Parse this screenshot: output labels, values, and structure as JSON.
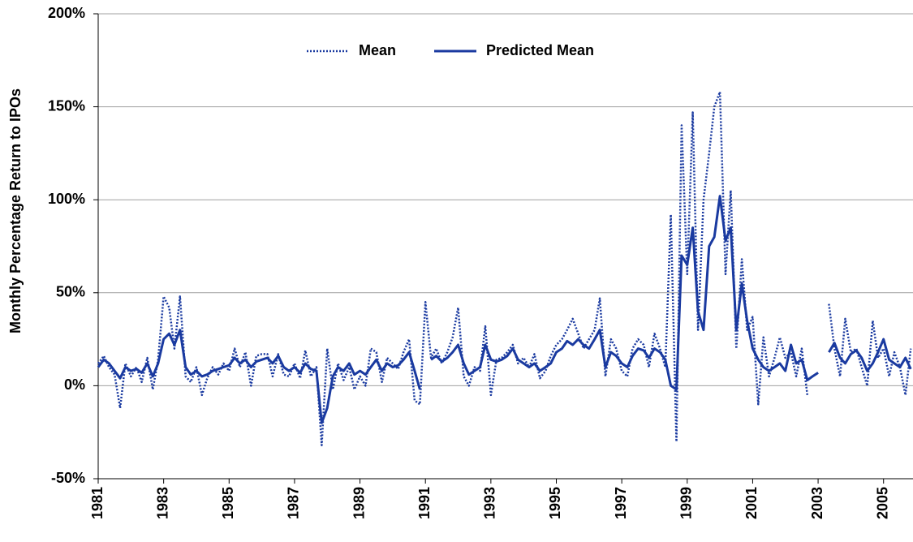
{
  "chart_data": {
    "type": "line",
    "y_label": "Monthly Percentage Return to IPOs",
    "x": [
      1981,
      1981.17,
      1981.33,
      1981.5,
      1981.67,
      1981.83,
      1982,
      1982.17,
      1982.33,
      1982.5,
      1982.67,
      1982.83,
      1983,
      1983.17,
      1983.33,
      1983.5,
      1983.67,
      1983.83,
      1984,
      1984.17,
      1984.33,
      1984.5,
      1984.67,
      1984.83,
      1985,
      1985.17,
      1985.33,
      1985.5,
      1985.67,
      1985.83,
      1986,
      1986.17,
      1986.33,
      1986.5,
      1986.67,
      1986.83,
      1987,
      1987.17,
      1987.33,
      1987.5,
      1987.67,
      1987.83,
      1988,
      1988.17,
      1988.33,
      1988.5,
      1988.67,
      1988.83,
      1989,
      1989.17,
      1989.33,
      1989.5,
      1989.67,
      1989.83,
      1990,
      1990.17,
      1990.33,
      1990.5,
      1990.67,
      1990.83,
      1991,
      1991.17,
      1991.33,
      1991.5,
      1991.67,
      1991.83,
      1992,
      1992.17,
      1992.33,
      1992.5,
      1992.67,
      1992.83,
      1993,
      1993.17,
      1993.33,
      1993.5,
      1993.67,
      1993.83,
      1994,
      1994.17,
      1994.33,
      1994.5,
      1994.67,
      1994.83,
      1995,
      1995.17,
      1995.33,
      1995.5,
      1995.67,
      1995.83,
      1996,
      1996.17,
      1996.33,
      1996.5,
      1996.67,
      1996.83,
      1997,
      1997.17,
      1997.33,
      1997.5,
      1997.67,
      1997.83,
      1998,
      1998.17,
      1998.33,
      1998.5,
      1998.67,
      1998.83,
      1999,
      1999.17,
      1999.33,
      1999.5,
      1999.67,
      1999.83,
      2000,
      2000.17,
      2000.33,
      2000.5,
      2000.67,
      2000.83,
      2001,
      2001.17,
      2001.33,
      2001.5,
      2001.67,
      2001.83,
      2002,
      2002.17,
      2002.33,
      2002.5,
      2002.67,
      2002.83,
      2003,
      2003.17,
      2003.33,
      2003.5,
      2003.67,
      2003.83,
      2004,
      2004.17,
      2004.33,
      2004.5,
      2004.67,
      2004.83,
      2005,
      2005.17,
      2005.33,
      2005.5,
      2005.67,
      2005.83
    ],
    "series": [
      {
        "name": "Mean",
        "color": "#1a3aa0",
        "style": "dotted",
        "values": [
          12,
          16,
          10,
          6,
          -12,
          12,
          5,
          10,
          2,
          15,
          -2,
          14,
          48,
          42,
          20,
          48,
          5,
          2,
          10,
          -5,
          4,
          10,
          6,
          12,
          8,
          20,
          10,
          18,
          0,
          16,
          17,
          17,
          5,
          17,
          6,
          5,
          12,
          4,
          19,
          5,
          10,
          -32,
          20,
          -2,
          12,
          3,
          10,
          -2,
          5,
          0,
          20,
          18,
          2,
          15,
          12,
          9,
          18,
          25,
          -8,
          -10,
          45,
          15,
          20,
          12,
          18,
          26,
          42,
          5,
          0,
          10,
          8,
          32,
          -5,
          14,
          15,
          18,
          22,
          12,
          15,
          10,
          17,
          4,
          8,
          16,
          22,
          25,
          30,
          36,
          28,
          20,
          25,
          30,
          47,
          5,
          25,
          20,
          8,
          5,
          20,
          25,
          22,
          10,
          28,
          20,
          10,
          92,
          -30,
          140,
          60,
          147,
          30,
          100,
          125,
          150,
          158,
          60,
          105,
          20,
          68,
          30,
          37,
          -10,
          26,
          5,
          15,
          26,
          15,
          18,
          5,
          20,
          -5,
          null,
          18,
          null,
          44,
          20,
          5,
          36,
          18,
          20,
          10,
          0,
          35,
          15,
          20,
          5,
          18,
          10,
          -5,
          20
        ]
      },
      {
        "name": "Predicted Mean",
        "color": "#1a3aa0",
        "style": "solid",
        "values": [
          10,
          14,
          12,
          8,
          4,
          10,
          8,
          9,
          7,
          12,
          5,
          12,
          25,
          28,
          22,
          30,
          10,
          6,
          8,
          5,
          6,
          8,
          9,
          10,
          11,
          15,
          12,
          14,
          10,
          13,
          14,
          15,
          12,
          16,
          10,
          8,
          10,
          7,
          12,
          9,
          8,
          -20,
          -12,
          5,
          10,
          8,
          12,
          6,
          8,
          6,
          10,
          14,
          8,
          12,
          10,
          11,
          14,
          18,
          8,
          -2,
          null,
          14,
          16,
          13,
          15,
          18,
          22,
          12,
          6,
          8,
          10,
          22,
          14,
          13,
          14,
          16,
          20,
          14,
          12,
          10,
          12,
          8,
          10,
          12,
          18,
          20,
          24,
          22,
          25,
          22,
          20,
          25,
          30,
          10,
          18,
          16,
          12,
          10,
          16,
          20,
          19,
          15,
          20,
          18,
          14,
          0,
          -2,
          70,
          65,
          85,
          40,
          30,
          75,
          80,
          102,
          78,
          85,
          30,
          55,
          35,
          20,
          14,
          10,
          8,
          10,
          12,
          8,
          22,
          12,
          14,
          3,
          5,
          7,
          null,
          18,
          23,
          15,
          12,
          17,
          19,
          15,
          8,
          12,
          18,
          25,
          14,
          12,
          10,
          15,
          9
        ]
      }
    ],
    "xlim": [
      1981,
      2005.9
    ],
    "xticks": [
      1981,
      1983,
      1985,
      1987,
      1989,
      1991,
      1993,
      1995,
      1997,
      1999,
      2001,
      2003,
      2005
    ],
    "ylim": [
      -50,
      200
    ],
    "yticks": [
      {
        "value": -50,
        "label": "-50%"
      },
      {
        "value": 0,
        "label": "0%"
      },
      {
        "value": 50,
        "label": "50%"
      },
      {
        "value": 100,
        "label": "100%"
      },
      {
        "value": 150,
        "label": "150%"
      },
      {
        "value": 200,
        "label": "200%"
      }
    ],
    "grid": true
  }
}
